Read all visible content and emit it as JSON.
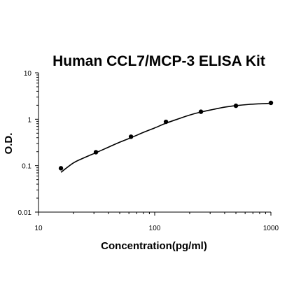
{
  "chart_data": {
    "type": "scatter",
    "title": "Human CCL7/MCP-3 ELISA Kit",
    "xlabel": "Concentration(pg/ml)",
    "ylabel": "O.D.",
    "xscale": "log",
    "yscale": "log",
    "xlim": [
      10,
      1000
    ],
    "ylim": [
      0.01,
      10
    ],
    "x_ticks": [
      10,
      100,
      1000
    ],
    "x_tick_labels": [
      "10",
      "100",
      "1000"
    ],
    "y_ticks": [
      0.01,
      0.1,
      1,
      10
    ],
    "y_tick_labels": [
      "0.01",
      "0.1",
      "1",
      "10"
    ],
    "grid": false,
    "legend": "none",
    "series": [
      {
        "x": [
          15.6,
          31.2,
          62.5,
          125,
          250,
          500,
          1000
        ],
        "y": [
          0.088,
          0.195,
          0.42,
          0.88,
          1.45,
          1.95,
          2.25
        ]
      }
    ],
    "fit_curve": {
      "x": [
        15.6,
        20,
        25,
        31.2,
        40,
        50,
        62.5,
        80,
        100,
        125,
        160,
        200,
        250,
        320,
        400,
        500,
        640,
        800,
        1000
      ],
      "y": [
        0.072,
        0.115,
        0.15,
        0.19,
        0.25,
        0.32,
        0.4,
        0.52,
        0.65,
        0.82,
        1.02,
        1.23,
        1.43,
        1.63,
        1.82,
        1.96,
        2.08,
        2.15,
        2.2
      ]
    },
    "colors": {
      "marker": "#000000",
      "line": "#000000",
      "axis": "#000000"
    }
  }
}
